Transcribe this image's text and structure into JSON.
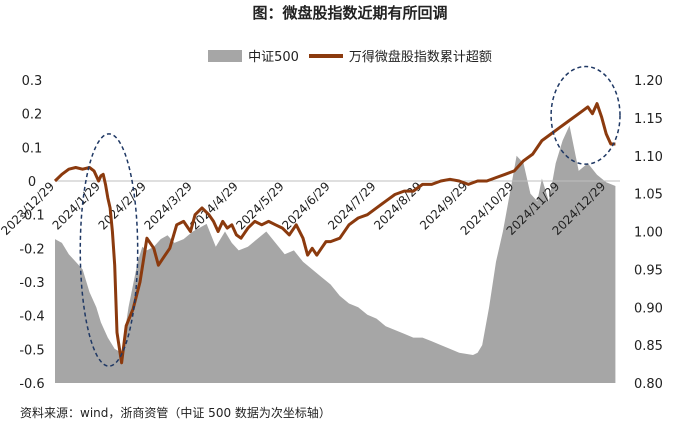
{
  "title": "图：微盘股指数近期有所回调",
  "source": "资料来源：wind，浙商资管（中证 500 数据为次坐标轴）",
  "chart_data": {
    "type": "area",
    "legend": [
      {
        "name": "中证500",
        "kind": "area",
        "color": "#a6a6a6"
      },
      {
        "name": "万得微盘股指数累计超额",
        "kind": "line",
        "color": "#8b3a0e"
      }
    ],
    "left_axis": {
      "ylim": [
        -0.6,
        0.3
      ],
      "ticks": [
        "0.3",
        "0.2",
        "0.1",
        "0",
        "-0.1",
        "-0.2",
        "-0.3",
        "-0.4",
        "-0.5",
        "-0.6"
      ],
      "tick_values": [
        0.3,
        0.2,
        0.1,
        0,
        -0.1,
        -0.2,
        -0.3,
        -0.4,
        -0.5,
        -0.6
      ]
    },
    "right_axis": {
      "ylim": [
        0.8,
        1.2
      ],
      "ticks": [
        "1.20",
        "1.15",
        "1.10",
        "1.05",
        "1.00",
        "0.95",
        "0.90",
        "0.85",
        "0.80"
      ],
      "tick_values": [
        1.2,
        1.15,
        1.1,
        1.05,
        1.0,
        0.95,
        0.9,
        0.85,
        0.8
      ]
    },
    "x_labels": [
      "2023/12/29",
      "2024/1/29",
      "2024/2/29",
      "2024/3/29",
      "2024/4/29",
      "2024/5/29",
      "2024/6/29",
      "2024/7/29",
      "2024/8/29",
      "2024/9/29",
      "2024/10/29",
      "2024/11/29",
      "2024/12/29"
    ],
    "x_range": [
      0,
      12.3
    ],
    "series": [
      {
        "name": "中证500",
        "axis": "right",
        "x": [
          0,
          0.15,
          0.3,
          0.45,
          0.6,
          0.75,
          0.9,
          1.0,
          1.15,
          1.3,
          1.45,
          1.6,
          1.8,
          1.9,
          2.0,
          2.15,
          2.3,
          2.45,
          2.6,
          2.8,
          3.0,
          3.15,
          3.3,
          3.5,
          3.7,
          3.85,
          4.0,
          4.2,
          4.4,
          4.6,
          4.8,
          5.0,
          5.2,
          5.4,
          5.6,
          5.8,
          6.0,
          6.2,
          6.4,
          6.6,
          6.8,
          7.0,
          7.2,
          7.4,
          7.6,
          7.8,
          8.0,
          8.2,
          8.4,
          8.6,
          8.8,
          9.0,
          9.1,
          9.2,
          9.3,
          9.45,
          9.6,
          9.75,
          9.9,
          10.05,
          10.2,
          10.35,
          10.5,
          10.6,
          10.75,
          10.9,
          11.05,
          11.2,
          11.4,
          11.6,
          11.8,
          12.0,
          12.2
        ],
        "values": [
          0.99,
          0.985,
          0.97,
          0.96,
          0.95,
          0.92,
          0.9,
          0.88,
          0.86,
          0.845,
          0.84,
          0.9,
          0.96,
          0.98,
          0.975,
          0.98,
          0.99,
          0.995,
          0.985,
          0.99,
          1.0,
          1.005,
          1.01,
          0.98,
          1.0,
          0.985,
          0.975,
          0.98,
          0.99,
          1.0,
          0.985,
          0.97,
          0.975,
          0.96,
          0.95,
          0.94,
          0.93,
          0.915,
          0.905,
          0.9,
          0.89,
          0.885,
          0.875,
          0.87,
          0.865,
          0.86,
          0.86,
          0.855,
          0.85,
          0.845,
          0.84,
          0.838,
          0.837,
          0.84,
          0.85,
          0.9,
          0.96,
          1.0,
          1.05,
          1.1,
          1.09,
          1.05,
          1.04,
          1.07,
          1.04,
          1.09,
          1.12,
          1.14,
          1.08,
          1.09,
          1.075,
          1.065,
          1.06
        ]
      },
      {
        "name": "万得微盘股指数累计超额",
        "axis": "left",
        "x": [
          0,
          0.15,
          0.3,
          0.45,
          0.6,
          0.75,
          0.85,
          0.95,
          1.0,
          1.05,
          1.1,
          1.15,
          1.2,
          1.25,
          1.3,
          1.35,
          1.45,
          1.55,
          1.7,
          1.85,
          2.0,
          2.15,
          2.25,
          2.35,
          2.5,
          2.65,
          2.8,
          2.95,
          3.05,
          3.2,
          3.35,
          3.45,
          3.55,
          3.65,
          3.75,
          3.85,
          3.95,
          4.05,
          4.2,
          4.35,
          4.5,
          4.65,
          4.8,
          4.95,
          5.1,
          5.25,
          5.4,
          5.5,
          5.6,
          5.7,
          5.8,
          5.9,
          6.0,
          6.2,
          6.4,
          6.6,
          6.8,
          7.0,
          7.2,
          7.4,
          7.6,
          7.8,
          8.0,
          8.2,
          8.4,
          8.6,
          8.8,
          9.0,
          9.2,
          9.4,
          9.6,
          9.8,
          10.0,
          10.2,
          10.4,
          10.6,
          10.8,
          11.0,
          11.2,
          11.4,
          11.5,
          11.6,
          11.7,
          11.8,
          11.9,
          12.0,
          12.1,
          12.2
        ],
        "values": [
          0.0,
          0.02,
          0.035,
          0.04,
          0.035,
          0.04,
          0.03,
          0.0,
          0.015,
          0.02,
          -0.01,
          -0.05,
          -0.08,
          -0.15,
          -0.25,
          -0.45,
          -0.54,
          -0.43,
          -0.38,
          -0.3,
          -0.17,
          -0.2,
          -0.25,
          -0.23,
          -0.2,
          -0.13,
          -0.12,
          -0.15,
          -0.1,
          -0.08,
          -0.1,
          -0.12,
          -0.15,
          -0.12,
          -0.14,
          -0.13,
          -0.16,
          -0.17,
          -0.14,
          -0.12,
          -0.13,
          -0.12,
          -0.13,
          -0.14,
          -0.16,
          -0.13,
          -0.17,
          -0.22,
          -0.2,
          -0.22,
          -0.2,
          -0.18,
          -0.18,
          -0.17,
          -0.13,
          -0.11,
          -0.1,
          -0.08,
          -0.06,
          -0.04,
          -0.03,
          -0.03,
          -0.01,
          -0.01,
          0.0,
          0.005,
          0.0,
          -0.01,
          0.0,
          0.0,
          0.01,
          0.02,
          0.03,
          0.06,
          0.08,
          0.12,
          0.14,
          0.16,
          0.18,
          0.2,
          0.21,
          0.22,
          0.2,
          0.23,
          0.19,
          0.14,
          0.11,
          0.11
        ]
      }
    ],
    "annotations": [
      {
        "shape": "dashed-ellipse",
        "color": "#1f3864",
        "x_range": [
          0.55,
          1.8
        ],
        "y_range": [
          -0.55,
          0.14
        ],
        "axis": "left"
      },
      {
        "shape": "dashed-ellipse",
        "color": "#1f3864",
        "x_range": [
          10.8,
          12.3
        ],
        "y_range": [
          0.05,
          0.34
        ],
        "axis": "left"
      }
    ],
    "grid": false,
    "legend_position": "top-center"
  }
}
